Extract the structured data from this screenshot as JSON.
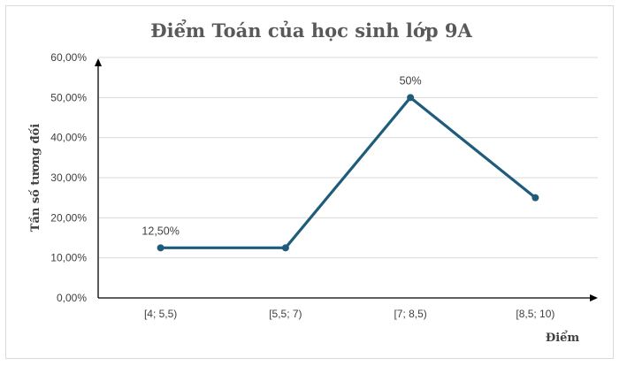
{
  "chart_data": {
    "type": "line",
    "title": "Điểm Toán của học sinh lớp 9A",
    "xlabel": "Điểm",
    "ylabel": "Tần số tương đối",
    "categories": [
      "[4; 5,5)",
      "[5,5; 7)",
      "[7; 8,5)",
      "[8,5; 10)"
    ],
    "series": [
      {
        "values": [
          12.5,
          12.5,
          50,
          25
        ]
      }
    ],
    "data_labels": [
      "12,50%",
      "",
      "50%",
      ""
    ],
    "yticks": [
      "0,00%",
      "10,00%",
      "20,00%",
      "30,00%",
      "40,00%",
      "50,00%",
      "60,00%"
    ],
    "ylim": [
      0,
      60
    ],
    "grid": true,
    "legend": "none",
    "colors": {
      "line": "#1f5c7a",
      "grid": "#d9d9d9",
      "axis": "#000000"
    }
  }
}
